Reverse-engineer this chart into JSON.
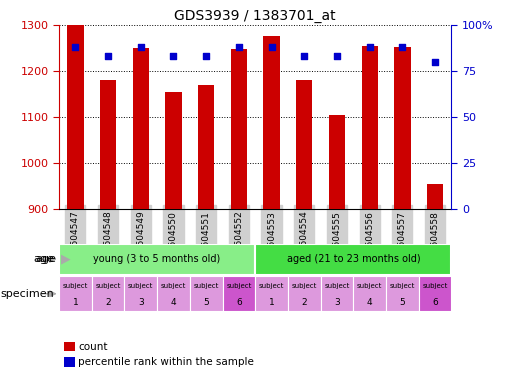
{
  "title": "GDS3939 / 1383701_at",
  "samples": [
    "GSM604547",
    "GSM604548",
    "GSM604549",
    "GSM604550",
    "GSM604551",
    "GSM604552",
    "GSM604553",
    "GSM604554",
    "GSM604555",
    "GSM604556",
    "GSM604557",
    "GSM604558"
  ],
  "counts": [
    1300,
    1180,
    1250,
    1155,
    1170,
    1248,
    1275,
    1180,
    1105,
    1255,
    1253,
    955
  ],
  "percentiles": [
    88,
    83,
    88,
    83,
    83,
    88,
    88,
    83,
    83,
    88,
    88,
    80
  ],
  "ylim": [
    900,
    1300
  ],
  "right_ylim": [
    0,
    100
  ],
  "right_yticks": [
    0,
    25,
    50,
    75,
    100
  ],
  "right_yticklabels": [
    "0",
    "25",
    "50",
    "75",
    "100%"
  ],
  "left_yticks": [
    900,
    1000,
    1100,
    1200,
    1300
  ],
  "bar_color": "#CC0000",
  "dot_color": "#0000CC",
  "bar_width": 0.5,
  "young_color": "#88EE88",
  "aged_color": "#44DD44",
  "spec_color_light": "#DD99DD",
  "spec_color_dark": "#CC55CC",
  "spec_labels_top": [
    "subject",
    "subject",
    "subject",
    "subject",
    "subject",
    "subject",
    "subject",
    "subject",
    "subject",
    "subject",
    "subject",
    "subject"
  ],
  "spec_labels_bot": [
    "1",
    "2",
    "3",
    "4",
    "5",
    "6",
    "1",
    "2",
    "3",
    "4",
    "5",
    "6"
  ],
  "xlabel_color": "#CC0000",
  "right_axis_color": "#0000CC",
  "label_color": "#999999",
  "xticklabel_bg": "#D0D0D0"
}
